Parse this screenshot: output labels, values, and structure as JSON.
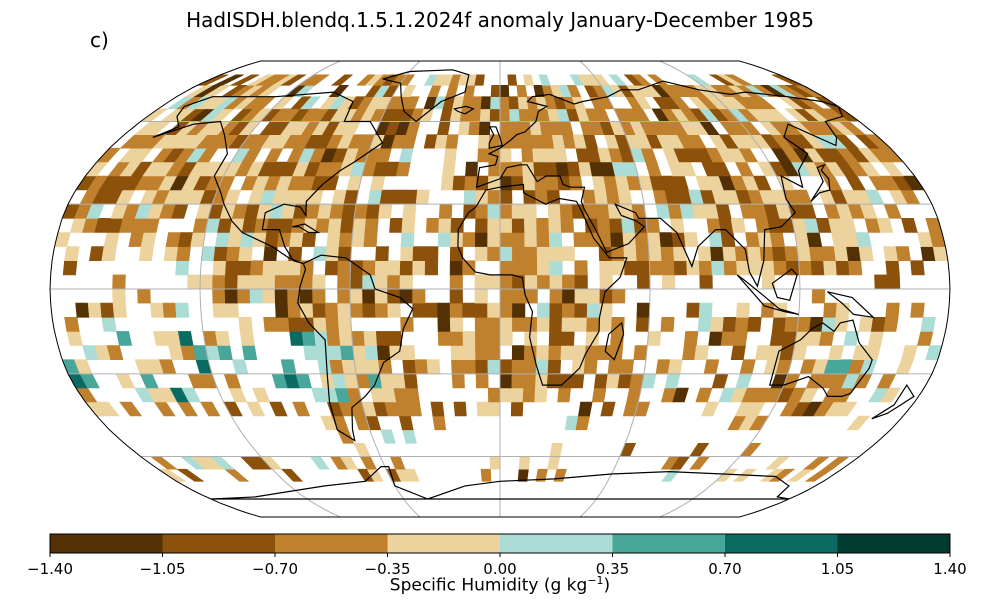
{
  "title": "HadISDH.blendq.1.5.1.2024f anomaly January-December 1985",
  "panel_label": "c)",
  "colorbar": {
    "label_main": "Specific Humidity (g kg",
    "label_exp": "−1",
    "label_end": ")",
    "ticks": [
      "−1.40",
      "−1.05",
      "−0.70",
      "−0.35",
      "0.00",
      "0.35",
      "0.70",
      "1.05",
      "1.40"
    ],
    "tick_values": [
      -1.4,
      -1.05,
      -0.7,
      -0.35,
      0.0,
      0.35,
      0.7,
      1.05,
      1.4
    ],
    "colors": [
      "#543005",
      "#8c510a",
      "#bf812d",
      "#ecd29c",
      "#abddd6",
      "#49a69b",
      "#0b6b62",
      "#003c30"
    ]
  },
  "map": {
    "projection": "Robinson",
    "gridlines": true,
    "grid_color": "#b0b0b0",
    "coast_color": "#000000"
  }
}
